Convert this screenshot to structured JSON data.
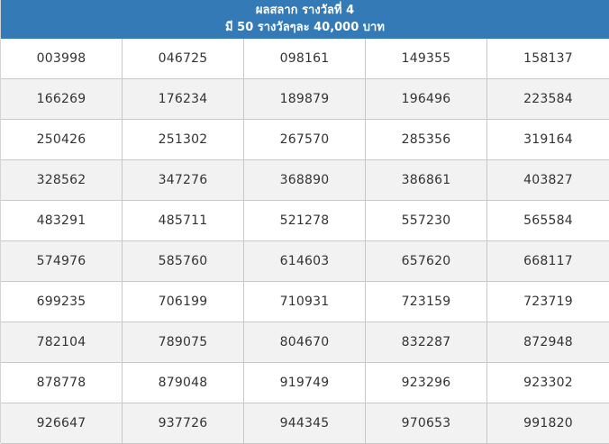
{
  "header": {
    "title": "ผลสลาก รางวัลที่ 4",
    "subtitle": "มี 50 รางวัลๆละ 40,000 บาท"
  },
  "numbers": [
    [
      "003998",
      "046725",
      "098161",
      "149355",
      "158137"
    ],
    [
      "166269",
      "176234",
      "189879",
      "196496",
      "223584"
    ],
    [
      "250426",
      "251302",
      "267570",
      "285356",
      "319164"
    ],
    [
      "328562",
      "347276",
      "368890",
      "386861",
      "403827"
    ],
    [
      "483291",
      "485711",
      "521278",
      "557230",
      "565584"
    ],
    [
      "574976",
      "585760",
      "614603",
      "657620",
      "668117"
    ],
    [
      "699235",
      "706199",
      "710931",
      "723159",
      "723719"
    ],
    [
      "782104",
      "789075",
      "804670",
      "832287",
      "872948"
    ],
    [
      "878778",
      "879048",
      "919749",
      "923296",
      "923302"
    ],
    [
      "926647",
      "937726",
      "944345",
      "970653",
      "991820"
    ]
  ],
  "colors": {
    "header_bg": "#337ab7",
    "header_text": "#ffffff",
    "alt_row_bg": "#f2f2f2",
    "border": "#c8c8c8"
  }
}
